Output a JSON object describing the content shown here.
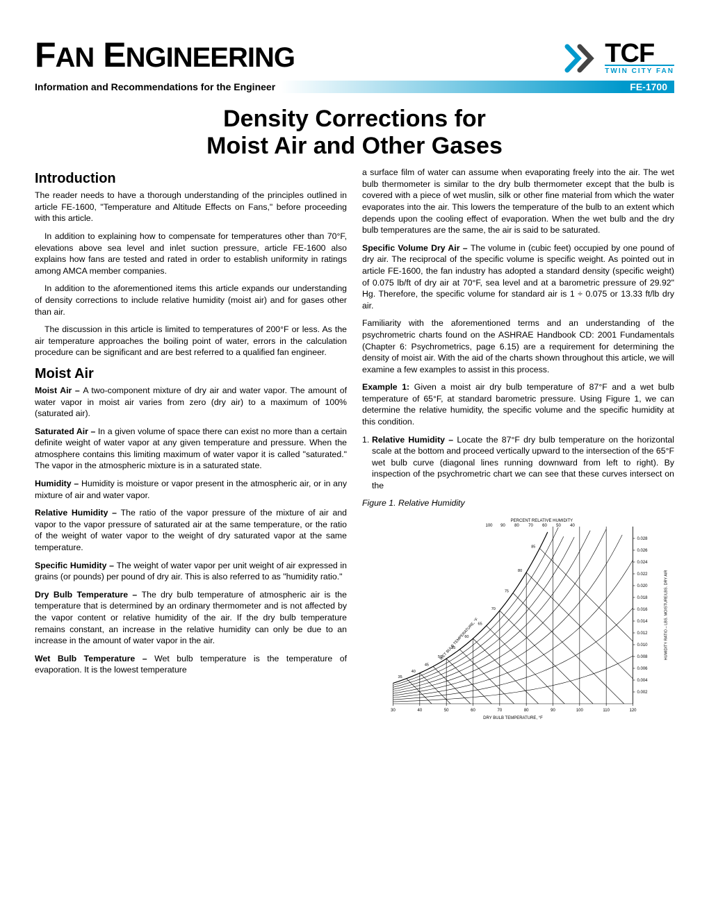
{
  "header": {
    "title_part1": "F",
    "title_part2": "AN",
    "title_part3": " E",
    "title_part4": "NGINEERING",
    "logo_tcf": "TCF",
    "logo_sub": "TWIN CITY FAN",
    "logo_chevron_color": "#0099cc",
    "info_label": "Information and Recommendations for the Engineer",
    "doc_code": "FE-1700",
    "gradient_end": "#0099cc"
  },
  "doc_title_line1": "Density Corrections for",
  "doc_title_line2": "Moist Air and Other Gases",
  "left_col": {
    "h_intro": "Introduction",
    "intro_p1": "The reader needs to have a thorough understanding of the principles outlined in article FE-1600, \"Temperature and Altitude Effects on Fans,\" before proceeding with this article.",
    "intro_p2": "In addition to explaining how to compensate for temperatures other than 70°F, elevations above sea level and inlet suction pressure, article FE-1600 also explains how fans are tested and rated in order to establish uniformity in ratings among AMCA member companies.",
    "intro_p3": "In addition to the aforementioned items this article expands our understanding of density corrections to include relative humidity (moist air) and for gases other than air.",
    "intro_p4": "The discussion in this article is limited to temperatures of 200°F or less. As the air temperature approaches the boiling point of water, errors in the calculation procedure can be significant and are best referred to a qualified fan engineer.",
    "h_moist": "Moist Air",
    "moist_term": "Moist Air – ",
    "moist_def": "A two-component mixture of dry air and water vapor. The amount of water vapor in moist air varies from zero (dry air) to a maximum of 100% (saturated air).",
    "sat_term": "Saturated Air – ",
    "sat_def": "In a given volume of space there can exist no more than a certain definite weight of water vapor at any given temperature and pressure. When the atmosphere contains this limiting maximum of water vapor it is called \"saturated.\" The vapor in the atmospheric mixture is in a saturated state.",
    "hum_term": "Humidity – ",
    "hum_def": "Humidity is moisture or vapor present in the atmospheric air, or in any mixture of air and water vapor.",
    "rh_term": "Relative Humidity – ",
    "rh_def": "The ratio of the vapor pressure of the mixture of air and vapor to the vapor pressure of saturated air at the same temperature, or the ratio of the weight of water vapor to the weight of dry saturated vapor at the same temperature.",
    "sh_term": "Specific Humidity – ",
    "sh_def": "The weight of water vapor per unit weight of air expressed in grains (or pounds) per pound of dry air. This is also referred to as \"humidity ratio.\"",
    "db_term": "Dry Bulb Temperature – ",
    "db_def": "The dry bulb temperature of atmospheric air is the temperature that is determined by an ordinary thermometer and is not affected by the vapor content or relative humidity of the air. If the dry bulb temperature remains constant, an increase in the relative humidity can only be due to an increase in the amount of water vapor in the air.",
    "wb_term": "Wet Bulb Temperature – ",
    "wb_def": "Wet bulb temperature is the temperature of evaporation. It is the lowest temperature"
  },
  "right_col": {
    "wb_cont": "a surface film of water can assume when evaporating freely into the air. The wet bulb thermometer is similar to the dry bulb thermometer except that the bulb is covered with a piece of wet muslin, silk or other fine material from which the water evaporates into the air. This lowers the temperature of the bulb to an extent which depends upon the cooling effect of evaporation. When the wet bulb and the dry bulb temperatures are the same, the air is said to be saturated.",
    "sv_term": "Specific Volume Dry Air – ",
    "sv_def": "The volume in (cubic feet) occupied by one pound of dry air. The reciprocal of the specific volume is specific weight. As pointed out in article FE-1600, the fan industry has adopted a standard density (specific weight) of 0.075 lb/ft of dry air at 70°F, sea level and at a barometric pressure of 29.92\" Hg. Therefore, the specific volume for standard air is 1 ÷ 0.075 or 13.33 ft/lb dry air.",
    "fam_p": "Familiarity with the aforementioned terms and an understanding of the psychrometric charts found on the ASHRAE Handbook CD: 2001 Fundamentals (Chapter 6: Psychrometrics, page 6.15) are a requirement for determining the density of moist air. With the aid of the charts shown throughout this article, we will examine a few examples to assist in this process.",
    "ex1_term": "Example 1: ",
    "ex1_def": "Given a moist air dry bulb temperature of 87°F and a wet bulb temperature of 65°F, at standard barometric pressure. Using Figure 1, we can determine the relative humidity, the specific volume and the specific humidity at this condition.",
    "rh_item_num": "1.",
    "rh_item_term": "Relative Humidity – ",
    "rh_item_def": "Locate the 87°F dry bulb temperature on the horizontal scale at the bottom and proceed vertically upward to the intersection of the 65°F wet bulb curve (diagonal lines running downward from left to right). By inspection of the psychrometric chart we can see that these curves intersect on the",
    "fig_caption": "Figure 1. Relative Humidity"
  },
  "chart": {
    "type": "psychrometric",
    "background_color": "#ffffff",
    "line_color": "#000000",
    "text_color": "#000000",
    "title": "PERCENT RELATIVE HUMIDITY",
    "title_fontsize": 6,
    "xaxis_label": "DRY BULB TEMPERATURE, °F",
    "xaxis_fontsize": 6,
    "yaxis_label": "HUMIDITY RATIO – LBS. MOISTURE/LBS. DRY AIR",
    "yaxis_fontsize": 5.5,
    "wb_label": "WET BULB TEMPERATURE, °F",
    "wb_fontsize": 5.5,
    "x_ticks": [
      30,
      40,
      50,
      60,
      70,
      80,
      90,
      100,
      110,
      120
    ],
    "xlim": [
      30,
      120
    ],
    "y_ticks": [
      0.002,
      0.004,
      0.006,
      0.008,
      0.01,
      0.012,
      0.014,
      0.016,
      0.018,
      0.02,
      0.022,
      0.024,
      0.026,
      0.028
    ],
    "ylim": [
      0,
      0.03
    ],
    "rh_top_labels": [
      100,
      90,
      80,
      70,
      60,
      50,
      40
    ],
    "rh_curves_pct": [
      10,
      20,
      30,
      40,
      50,
      60,
      70,
      80,
      90,
      100
    ],
    "wb_lines_f": [
      35,
      40,
      45,
      50,
      55,
      60,
      65,
      70,
      75,
      80,
      85
    ],
    "wb_tick_labels": [
      35,
      40,
      45,
      50,
      55,
      60,
      65,
      70,
      75,
      80,
      85
    ],
    "line_width": 0.6
  }
}
